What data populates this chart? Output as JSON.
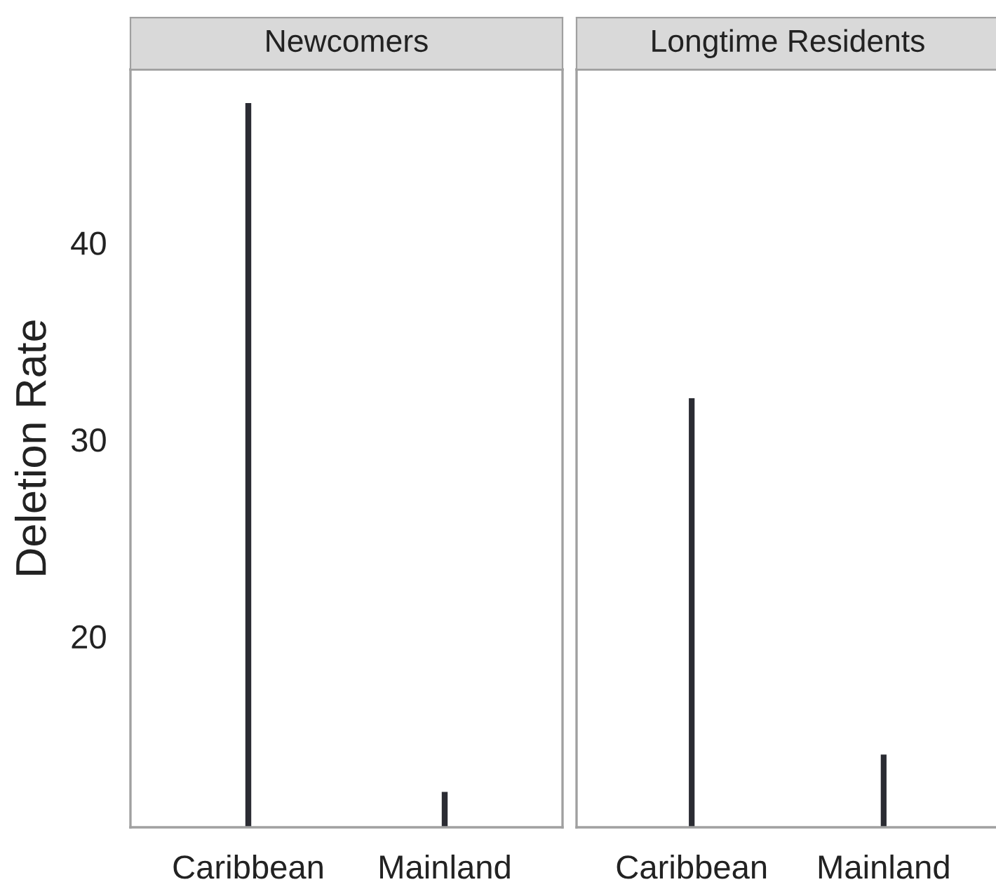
{
  "chart_data": [
    {
      "type": "bar",
      "title": "Newcomers",
      "ylabel": "Deletion Rate",
      "categories": [
        "Caribbean",
        "Mainland"
      ],
      "values": [
        47.1,
        12.1
      ],
      "color": "#2b2c33",
      "ylim": [
        10.3,
        48.8
      ],
      "yticks": [
        20,
        30,
        40
      ],
      "grid": false
    },
    {
      "type": "bar",
      "title": "Longtime Residents",
      "categories": [
        "Caribbean",
        "Mainland"
      ],
      "values": [
        32.1,
        14.0
      ],
      "color": "#2b2c33",
      "ylim": [
        10.3,
        48.8
      ],
      "yticks": [
        20,
        30,
        40
      ],
      "grid": false,
      "tick_labels": "x"
    }
  ]
}
